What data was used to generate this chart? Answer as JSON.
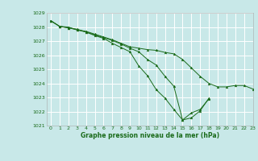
{
  "xlabel": "Graphe pression niveau de la mer (hPa)",
  "bg_color": "#c8e8e8",
  "grid_color": "#ffffff",
  "line_color": "#1a6b1a",
  "ylim": [
    1021,
    1029
  ],
  "xlim": [
    -0.5,
    23
  ],
  "yticks": [
    1021,
    1022,
    1023,
    1024,
    1025,
    1026,
    1027,
    1028,
    1029
  ],
  "xticks": [
    0,
    1,
    2,
    3,
    4,
    5,
    6,
    7,
    8,
    9,
    10,
    11,
    12,
    13,
    14,
    15,
    16,
    17,
    18,
    19,
    20,
    21,
    22,
    23
  ],
  "series": [
    [
      1028.45,
      1028.05,
      1028.0,
      1027.8,
      1027.7,
      1027.5,
      1027.3,
      1027.1,
      1026.85,
      1026.6,
      1026.5,
      1026.4,
      1026.35,
      1026.2,
      1026.1,
      1025.7,
      1025.1,
      1024.5,
      1024.0,
      1023.75,
      1023.75,
      1023.85,
      1023.85,
      1023.6
    ],
    [
      1028.45,
      1028.05,
      1027.95,
      1027.85,
      1027.65,
      1027.4,
      1027.2,
      1026.85,
      1026.55,
      1026.25,
      1025.25,
      1024.55,
      1023.55,
      1022.95,
      1022.15,
      1021.4,
      1021.55,
      1022.05,
      1022.95,
      null,
      null,
      null,
      null,
      null
    ],
    [
      1028.45,
      1028.05,
      1027.95,
      1027.8,
      1027.65,
      1027.45,
      1027.25,
      1027.05,
      1026.8,
      1026.5,
      1026.25,
      1025.7,
      1025.3,
      1024.5,
      1023.8,
      1021.4,
      1021.9,
      1022.15,
      1022.9,
      null,
      null,
      null,
      null,
      null
    ]
  ]
}
